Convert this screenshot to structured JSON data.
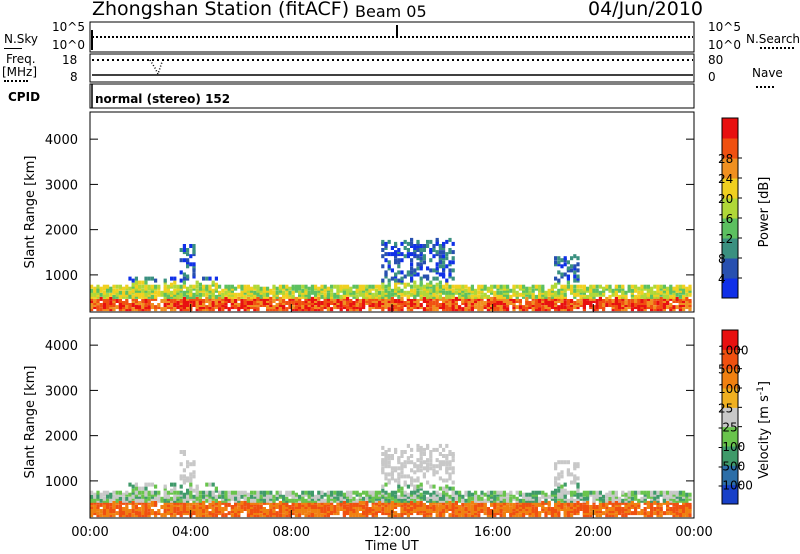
{
  "header": {
    "station": "Zhongshan Station (fitACF)",
    "beam": "Beam 05",
    "date": "04/Jun/2010"
  },
  "status_panels": {
    "nsky_label": "N.Sky",
    "nsky_ticks": [
      "10^5",
      "10^0"
    ],
    "nsearch_label": "N.Search",
    "nsearch_ticks": [
      "10^5",
      "10^0"
    ],
    "freq_label": "Freq.",
    "freq_unit": "[MHz]",
    "freq_ticks": [
      "18",
      "8"
    ],
    "nave_label": "Nave",
    "nave_ticks": [
      "80",
      "0"
    ],
    "cpid_label": "CPID",
    "cpid_text": "normal (stereo) 152"
  },
  "chart_data": [
    {
      "type": "heatmap",
      "name": "Power",
      "ylabel": "Slant Range [km]",
      "yticks": [
        "1000",
        "2000",
        "3000",
        "4000"
      ],
      "ylim": [
        180,
        4600
      ],
      "x_hours": [
        0,
        24
      ],
      "colorbar": {
        "label": "Power [dB]",
        "ticks": [
          "4",
          "8",
          "12",
          "16",
          "20",
          "24",
          "28"
        ],
        "range": [
          0,
          32
        ],
        "colors": [
          "#1030e8",
          "#2850b0",
          "#3a9080",
          "#5cc060",
          "#b0d838",
          "#f0d020",
          "#f09020",
          "#f05010",
          "#e81010"
        ]
      }
    },
    {
      "type": "heatmap",
      "name": "Velocity",
      "ylabel": "Slant Range [km]",
      "yticks": [
        "1000",
        "2000",
        "3000",
        "4000"
      ],
      "ylim": [
        180,
        4600
      ],
      "xlabel": "Time UT",
      "xticks": [
        "00:00",
        "04:00",
        "08:00",
        "12:00",
        "16:00",
        "20:00",
        "00:00"
      ],
      "x_hours": [
        0,
        24
      ],
      "colorbar": {
        "label": "Velocity",
        "unit": "[m s",
        "unit_sup": "-1",
        "unit_end": "]",
        "ticks": [
          "1000",
          "500",
          "100",
          "25",
          "-25",
          "-100",
          "-500",
          "-1000"
        ],
        "colors": [
          "#1840c8",
          "#2c6ea8",
          "#3f9a6a",
          "#69c44c",
          "#c8c8c8",
          "#f0b020",
          "#f08010",
          "#f05010",
          "#e81010"
        ]
      }
    }
  ]
}
